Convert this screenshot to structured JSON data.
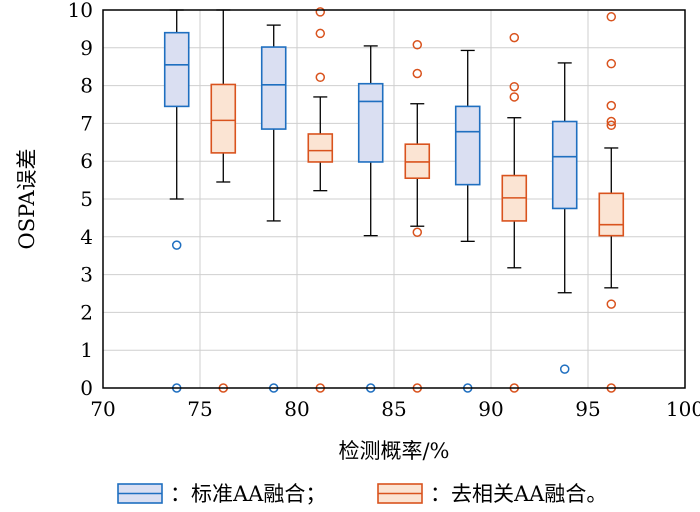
{
  "chart_data": {
    "type": "box",
    "title": "",
    "xlabel": "检测概率/%",
    "ylabel": "OSPA误差",
    "xlim": [
      70,
      100
    ],
    "ylim": [
      0,
      10
    ],
    "xticks": [
      "70",
      "75",
      "80",
      "85",
      "90",
      "95",
      "100"
    ],
    "yticks": [
      "0",
      "1",
      "2",
      "3",
      "4",
      "5",
      "6",
      "7",
      "8",
      "9",
      "10"
    ],
    "grid": true,
    "legend_position": "bottom",
    "series": [
      {
        "name": "：标准AA融合；",
        "color": "#1f6fc0",
        "fill": "#dadff2",
        "boxes": [
          {
            "x": 73.8,
            "whisker_low": 5.0,
            "q1": 7.45,
            "median": 8.55,
            "q3": 9.4,
            "whisker_high": 10.0,
            "outliers": [
              3.78,
              0.0
            ]
          },
          {
            "x": 78.8,
            "whisker_low": 4.42,
            "q1": 6.85,
            "median": 8.02,
            "q3": 9.02,
            "whisker_high": 9.6,
            "outliers": [
              0.0
            ]
          },
          {
            "x": 83.8,
            "whisker_low": 4.03,
            "q1": 5.98,
            "median": 7.58,
            "q3": 8.05,
            "whisker_high": 9.05,
            "outliers": [
              0.0
            ]
          },
          {
            "x": 88.8,
            "whisker_low": 3.88,
            "q1": 5.38,
            "median": 6.78,
            "q3": 7.45,
            "whisker_high": 8.93,
            "outliers": [
              0.0
            ]
          },
          {
            "x": 93.8,
            "whisker_low": 2.52,
            "q1": 4.75,
            "median": 6.12,
            "q3": 7.05,
            "whisker_high": 8.6,
            "outliers": [
              0.5
            ]
          }
        ]
      },
      {
        "name": "：去相关AA融合。",
        "color": "#d9531e",
        "fill": "#fbe4d3",
        "boxes": [
          {
            "x": 76.2,
            "whisker_low": 5.45,
            "q1": 6.22,
            "median": 7.08,
            "q3": 8.03,
            "whisker_high": 10.0,
            "outliers": [
              0.0
            ]
          },
          {
            "x": 81.2,
            "whisker_low": 5.22,
            "q1": 5.98,
            "median": 6.28,
            "q3": 6.72,
            "whisker_high": 7.7,
            "outliers": [
              8.22,
              9.38,
              9.95,
              0.0
            ]
          },
          {
            "x": 86.2,
            "whisker_low": 4.28,
            "q1": 5.55,
            "median": 5.98,
            "q3": 6.45,
            "whisker_high": 7.52,
            "outliers": [
              8.32,
              9.08,
              4.12,
              0.0
            ]
          },
          {
            "x": 91.2,
            "whisker_low": 3.18,
            "q1": 4.42,
            "median": 5.03,
            "q3": 5.62,
            "whisker_high": 7.15,
            "outliers": [
              7.7,
              7.97,
              9.27,
              0.0
            ]
          },
          {
            "x": 96.2,
            "whisker_low": 2.65,
            "q1": 4.03,
            "median": 4.32,
            "q3": 5.15,
            "whisker_high": 6.35,
            "outliers": [
              6.95,
              7.05,
              7.47,
              8.58,
              9.82,
              2.22,
              0.0
            ]
          }
        ]
      }
    ]
  }
}
